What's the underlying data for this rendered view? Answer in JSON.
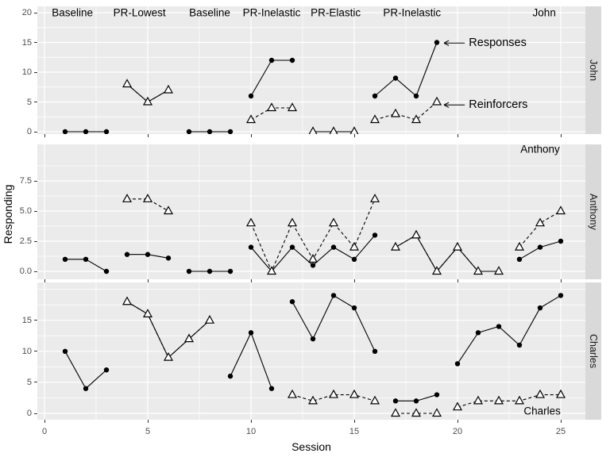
{
  "chart_data": {
    "type": "line",
    "xlabel": "Session",
    "ylabel": "Responding",
    "x_ticks": [
      0,
      5,
      10,
      15,
      20,
      25
    ],
    "x_minor": [
      2.5,
      7.5,
      12.5,
      17.5,
      22.5
    ],
    "legend": {
      "responses_label": "Responses",
      "reinforcers_label": "Reinforcers"
    },
    "series_styles": {
      "responses": {
        "marker": "filled-circle",
        "line": "solid",
        "color": "#000000"
      },
      "reinforcers": {
        "marker": "open-triangle",
        "line": "dashed",
        "color": "#000000"
      }
    },
    "colors": {
      "panel_bg": "#EBEBEB",
      "strip_bg": "#D9D9D9",
      "grid": "#FFFFFF",
      "tick_text": "#4D4D4D",
      "text": "#000000"
    },
    "panels": [
      {
        "subject": "John",
        "y_ticks": [
          0,
          5,
          10,
          15,
          20
        ],
        "y_tick_labels": [
          "0",
          "5",
          "10",
          "15",
          "20"
        ],
        "y_minor": [
          2.5,
          7.5,
          12.5,
          17.5
        ],
        "responses_segments": [
          [
            [
              1,
              0
            ],
            [
              2,
              0
            ],
            [
              3,
              0
            ]
          ],
          [
            [
              4,
              8
            ],
            [
              5,
              5
            ],
            [
              6,
              7
            ]
          ],
          [
            [
              7,
              0
            ],
            [
              8,
              0
            ],
            [
              9,
              0
            ]
          ],
          [
            [
              10,
              6
            ],
            [
              11,
              12
            ],
            [
              12,
              12
            ]
          ],
          [
            [
              13,
              0
            ],
            [
              14,
              0
            ],
            [
              15,
              0
            ]
          ],
          [
            [
              16,
              6
            ],
            [
              17,
              9
            ],
            [
              18,
              6
            ],
            [
              19,
              15
            ]
          ]
        ],
        "reinforcers_segments": [
          [
            [
              4,
              8
            ],
            [
              5,
              5
            ],
            [
              6,
              7
            ]
          ],
          [
            [
              10,
              2
            ],
            [
              11,
              4
            ],
            [
              12,
              4
            ]
          ],
          [
            [
              13,
              0
            ],
            [
              14,
              0
            ],
            [
              15,
              0
            ]
          ],
          [
            [
              16,
              2
            ],
            [
              17,
              3
            ],
            [
              18,
              2
            ],
            [
              19,
              5
            ]
          ]
        ],
        "phase_labels": [
          {
            "text": "Baseline",
            "x": 1.35,
            "y": 20
          },
          {
            "text": "PR-Lowest",
            "x": 4.6,
            "y": 20
          },
          {
            "text": "Baseline",
            "x": 8.0,
            "y": 20
          },
          {
            "text": "PR-Inelastic",
            "x": 11.0,
            "y": 20
          },
          {
            "text": "PR-Elastic",
            "x": 14.1,
            "y": 20
          },
          {
            "text": "PR-Inelastic",
            "x": 17.8,
            "y": 20
          }
        ],
        "annotations": [
          {
            "text": "John",
            "x": 24.2,
            "y": 20,
            "anchor": "center"
          },
          {
            "text": "Responses",
            "x": 20.55,
            "y": 14.9,
            "anchor": "left",
            "arrow_from_x": 20.35,
            "arrow_to_x": 19.35
          },
          {
            "text": "Reinforcers",
            "x": 20.55,
            "y": 4.5,
            "anchor": "left",
            "arrow_from_x": 20.35,
            "arrow_to_x": 19.35
          }
        ]
      },
      {
        "subject": "Anthony",
        "y_ticks": [
          0,
          2.5,
          5,
          7.5
        ],
        "y_tick_labels": [
          "0.0",
          "2.5",
          "5.0",
          "7.5"
        ],
        "y_minor": [
          1.25,
          3.75,
          6.25,
          8.75
        ],
        "responses_segments": [
          [
            [
              1,
              1
            ],
            [
              2,
              1
            ],
            [
              3,
              0
            ]
          ],
          [
            [
              4,
              1.4
            ],
            [
              5,
              1.4
            ],
            [
              6,
              1.1
            ]
          ],
          [
            [
              7,
              0
            ],
            [
              8,
              0
            ],
            [
              9,
              0
            ]
          ],
          [
            [
              10,
              2
            ],
            [
              11,
              0
            ],
            [
              12,
              2
            ],
            [
              13,
              0.5
            ],
            [
              14,
              2
            ],
            [
              15,
              1
            ],
            [
              16,
              3
            ]
          ],
          [
            [
              17,
              2
            ],
            [
              18,
              3
            ],
            [
              19,
              0
            ],
            [
              20,
              2
            ],
            [
              21,
              0
            ],
            [
              22,
              0
            ]
          ],
          [
            [
              23,
              1
            ],
            [
              24,
              2
            ],
            [
              25,
              2.5
            ]
          ]
        ],
        "reinforcers_segments": [
          [
            [
              4,
              6
            ],
            [
              5,
              6
            ],
            [
              6,
              5
            ]
          ],
          [
            [
              10,
              4
            ],
            [
              11,
              0
            ],
            [
              12,
              4
            ],
            [
              13,
              1
            ],
            [
              14,
              4
            ],
            [
              15,
              2
            ],
            [
              16,
              6
            ]
          ],
          [
            [
              17,
              2
            ],
            [
              18,
              3
            ],
            [
              19,
              0
            ],
            [
              20,
              2
            ],
            [
              21,
              0
            ],
            [
              22,
              0
            ]
          ],
          [
            [
              23,
              2
            ],
            [
              24,
              4
            ],
            [
              25,
              5
            ]
          ]
        ],
        "phase_labels": [],
        "annotations": [
          {
            "text": "Anthony",
            "x": 24.0,
            "y": 10.1,
            "anchor": "center"
          }
        ]
      },
      {
        "subject": "Charles",
        "y_ticks": [
          0,
          5,
          10,
          15
        ],
        "y_tick_labels": [
          "0",
          "5",
          "10",
          "15"
        ],
        "y_minor": [
          2.5,
          7.5,
          12.5,
          17.5,
          20
        ],
        "responses_segments": [
          [
            [
              1,
              10
            ],
            [
              2,
              4
            ],
            [
              3,
              7
            ]
          ],
          [
            [
              4,
              18
            ],
            [
              5,
              16
            ],
            [
              6,
              9
            ],
            [
              7,
              12
            ],
            [
              8,
              15
            ]
          ],
          [
            [
              9,
              6
            ],
            [
              10,
              13
            ],
            [
              11,
              4
            ]
          ],
          [
            [
              12,
              18
            ],
            [
              13,
              12
            ],
            [
              14,
              19
            ],
            [
              15,
              17
            ],
            [
              16,
              10
            ]
          ],
          [
            [
              17,
              2
            ],
            [
              18,
              2
            ],
            [
              19,
              3
            ]
          ],
          [
            [
              20,
              8
            ],
            [
              21,
              13
            ],
            [
              22,
              14
            ],
            [
              23,
              11
            ],
            [
              24,
              17
            ],
            [
              25,
              19
            ]
          ]
        ],
        "reinforcers_segments": [
          [
            [
              4,
              18
            ],
            [
              5,
              16
            ],
            [
              6,
              9
            ],
            [
              7,
              12
            ],
            [
              8,
              15
            ]
          ],
          [
            [
              12,
              3
            ],
            [
              13,
              2
            ],
            [
              14,
              3
            ],
            [
              15,
              3
            ],
            [
              16,
              2
            ]
          ],
          [
            [
              17,
              0
            ],
            [
              18,
              0
            ],
            [
              19,
              0
            ]
          ],
          [
            [
              20,
              1
            ],
            [
              21,
              2
            ],
            [
              22,
              2
            ],
            [
              23,
              2
            ],
            [
              24,
              3
            ],
            [
              25,
              3
            ]
          ]
        ],
        "phase_labels": [],
        "annotations": [
          {
            "text": "Charles",
            "x": 24.1,
            "y": 0.4,
            "anchor": "center"
          }
        ]
      }
    ]
  }
}
